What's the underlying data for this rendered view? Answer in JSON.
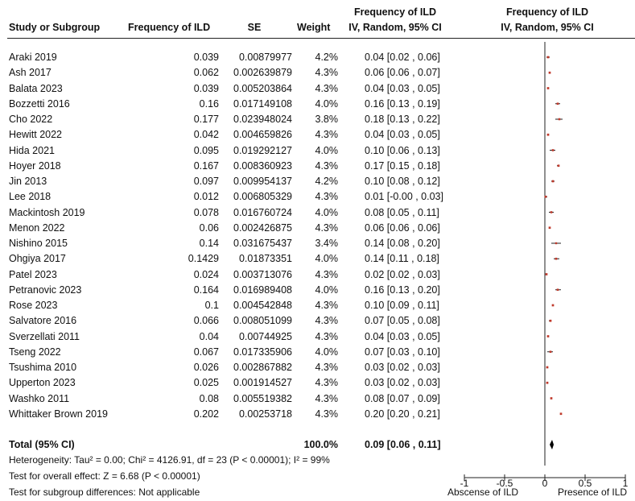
{
  "header": {
    "col_study": "Study or Subgroup",
    "col_freq": "Frequency of ILD",
    "col_se": "SE",
    "col_weight": "Weight",
    "col_ci_top": "Frequency of ILD",
    "col_ci_bottom": "IV, Random, 95% CI",
    "plot_top": "Frequency of ILD",
    "plot_bottom": "IV, Random, 95% CI"
  },
  "rows": [
    {
      "study": "Araki 2019",
      "freq": "0.039",
      "se": "0.00879977",
      "weight": "4.2%",
      "ci": "0.04 [0.02 , 0.06]"
    },
    {
      "study": "Ash 2017",
      "freq": "0.062",
      "se": "0.002639879",
      "weight": "4.3%",
      "ci": "0.06 [0.06 , 0.07]"
    },
    {
      "study": "Balata 2023",
      "freq": "0.039",
      "se": "0.005203864",
      "weight": "4.3%",
      "ci": "0.04 [0.03 , 0.05]"
    },
    {
      "study": "Bozzetti 2016",
      "freq": "0.16",
      "se": "0.017149108",
      "weight": "4.0%",
      "ci": "0.16 [0.13 , 0.19]"
    },
    {
      "study": "Cho 2022",
      "freq": "0.177",
      "se": "0.023948024",
      "weight": "3.8%",
      "ci": "0.18 [0.13 , 0.22]"
    },
    {
      "study": "Hewitt 2022",
      "freq": "0.042",
      "se": "0.004659826",
      "weight": "4.3%",
      "ci": "0.04 [0.03 , 0.05]"
    },
    {
      "study": "Hida 2021",
      "freq": "0.095",
      "se": "0.019292127",
      "weight": "4.0%",
      "ci": "0.10 [0.06 , 0.13]"
    },
    {
      "study": "Hoyer 2018",
      "freq": "0.167",
      "se": "0.008360923",
      "weight": "4.3%",
      "ci": "0.17 [0.15 , 0.18]"
    },
    {
      "study": "Jin 2013",
      "freq": "0.097",
      "se": "0.009954137",
      "weight": "4.2%",
      "ci": "0.10 [0.08 , 0.12]"
    },
    {
      "study": "Lee 2018",
      "freq": "0.012",
      "se": "0.006805329",
      "weight": "4.3%",
      "ci": "0.01 [-0.00 , 0.03]"
    },
    {
      "study": "Mackintosh 2019",
      "freq": "0.078",
      "se": "0.016760724",
      "weight": "4.0%",
      "ci": "0.08 [0.05 , 0.11]"
    },
    {
      "study": "Menon 2022",
      "freq": "0.06",
      "se": "0.002426875",
      "weight": "4.3%",
      "ci": "0.06 [0.06 , 0.06]"
    },
    {
      "study": "Nishino 2015",
      "freq": "0.14",
      "se": "0.031675437",
      "weight": "3.4%",
      "ci": "0.14 [0.08 , 0.20]"
    },
    {
      "study": "Ohgiya 2017",
      "freq": "0.1429",
      "se": "0.01873351",
      "weight": "4.0%",
      "ci": "0.14 [0.11 , 0.18]"
    },
    {
      "study": "Patel 2023",
      "freq": "0.024",
      "se": "0.003713076",
      "weight": "4.3%",
      "ci": "0.02 [0.02 , 0.03]"
    },
    {
      "study": "Petranovic 2023",
      "freq": "0.164",
      "se": "0.016989408",
      "weight": "4.0%",
      "ci": "0.16 [0.13 , 0.20]"
    },
    {
      "study": "Rose 2023",
      "freq": "0.1",
      "se": "0.004542848",
      "weight": "4.3%",
      "ci": "0.10 [0.09 , 0.11]"
    },
    {
      "study": "Salvatore 2016",
      "freq": "0.066",
      "se": "0.008051099",
      "weight": "4.3%",
      "ci": "0.07 [0.05 , 0.08]"
    },
    {
      "study": "Sverzellati 2011",
      "freq": "0.04",
      "se": "0.00744925",
      "weight": "4.3%",
      "ci": "0.04 [0.03 , 0.05]"
    },
    {
      "study": "Tseng 2022",
      "freq": "0.067",
      "se": "0.017335906",
      "weight": "4.0%",
      "ci": "0.07 [0.03 , 0.10]"
    },
    {
      "study": "Tsushima 2010",
      "freq": "0.026",
      "se": "0.002867882",
      "weight": "4.3%",
      "ci": "0.03 [0.02 , 0.03]"
    },
    {
      "study": "Upperton 2023",
      "freq": "0.025",
      "se": "0.001914527",
      "weight": "4.3%",
      "ci": "0.03 [0.02 , 0.03]"
    },
    {
      "study": "Washko 2011",
      "freq": "0.08",
      "se": "0.005519382",
      "weight": "4.3%",
      "ci": "0.08 [0.07 , 0.09]"
    },
    {
      "study": "Whittaker Brown 2019",
      "freq": "0.202",
      "se": "0.00253718",
      "weight": "4.3%",
      "ci": "0.20 [0.20 , 0.21]"
    }
  ],
  "total": {
    "label": "Total (95% CI)",
    "weight": "100.0%",
    "ci": "0.09 [0.06 , 0.11]"
  },
  "footer": {
    "heterogeneity": "Heterogeneity: Tau² = 0.00; Chi² = 4126.91, df = 23 (P < 0.00001); I² = 99%",
    "overall": "Test for overall effect: Z = 6.68 (P < 0.00001)",
    "subgroup": "Test for subgroup differences: Not applicable"
  },
  "axis": {
    "ticks": [
      "-1",
      "-0.5",
      "0",
      "0.5",
      "1"
    ],
    "left_label": "Abscense of ILD",
    "right_label": "Presence of ILD"
  },
  "colors": {
    "marker": "#c0392b",
    "line": "#222222"
  },
  "chart_data": {
    "type": "forest",
    "xlim": [
      -1,
      1
    ],
    "xticks": [
      -1,
      -0.5,
      0,
      0.5,
      1
    ],
    "estimates": [
      0.04,
      0.06,
      0.04,
      0.16,
      0.18,
      0.04,
      0.1,
      0.17,
      0.1,
      0.01,
      0.08,
      0.06,
      0.14,
      0.14,
      0.02,
      0.16,
      0.1,
      0.07,
      0.04,
      0.07,
      0.03,
      0.03,
      0.08,
      0.2
    ],
    "ci_low": [
      0.02,
      0.06,
      0.03,
      0.13,
      0.13,
      0.03,
      0.06,
      0.15,
      0.08,
      -0.0,
      0.05,
      0.06,
      0.08,
      0.11,
      0.02,
      0.13,
      0.09,
      0.05,
      0.03,
      0.03,
      0.02,
      0.02,
      0.07,
      0.2
    ],
    "ci_high": [
      0.06,
      0.07,
      0.05,
      0.19,
      0.22,
      0.05,
      0.13,
      0.18,
      0.12,
      0.03,
      0.11,
      0.06,
      0.2,
      0.18,
      0.03,
      0.2,
      0.11,
      0.08,
      0.05,
      0.1,
      0.03,
      0.03,
      0.09,
      0.21
    ],
    "weights": [
      4.2,
      4.3,
      4.3,
      4.0,
      3.8,
      4.3,
      4.0,
      4.3,
      4.2,
      4.3,
      4.0,
      4.3,
      3.4,
      4.0,
      4.3,
      4.0,
      4.3,
      4.3,
      4.3,
      4.0,
      4.3,
      4.3,
      4.3,
      4.3
    ],
    "pooled": {
      "estimate": 0.09,
      "ci_low": 0.06,
      "ci_high": 0.11
    }
  }
}
